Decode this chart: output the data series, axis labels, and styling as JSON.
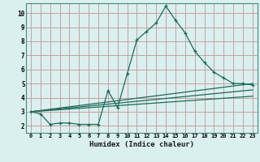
{
  "xlabel": "Humidex (Indice chaleur)",
  "bg_color": "#d9f0ee",
  "grid_color": "#c8a0a0",
  "line_color": "#1a6b5a",
  "xlim": [
    -0.5,
    23.5
  ],
  "ylim": [
    1.5,
    10.7
  ],
  "xticks": [
    0,
    1,
    2,
    3,
    4,
    5,
    6,
    7,
    8,
    9,
    10,
    11,
    12,
    13,
    14,
    15,
    16,
    17,
    18,
    19,
    20,
    21,
    22,
    23
  ],
  "yticks": [
    2,
    3,
    4,
    5,
    6,
    7,
    8,
    9,
    10
  ],
  "line1_x": [
    0,
    1,
    2,
    3,
    4,
    5,
    6,
    7,
    8,
    9,
    10,
    11,
    12,
    13,
    14,
    15,
    16,
    17,
    18,
    19,
    20,
    21,
    22,
    23
  ],
  "line1_y": [
    3.0,
    2.85,
    2.1,
    2.2,
    2.2,
    2.1,
    2.1,
    2.1,
    4.5,
    3.3,
    5.7,
    8.1,
    8.7,
    9.3,
    10.5,
    9.5,
    8.6,
    7.3,
    6.5,
    5.8,
    5.4,
    5.0,
    5.0,
    4.9
  ],
  "line2_x": [
    0,
    23
  ],
  "line2_y": [
    3.0,
    5.0
  ],
  "line3_x": [
    0,
    23
  ],
  "line3_y": [
    3.0,
    4.55
  ],
  "line4_x": [
    0,
    23
  ],
  "line4_y": [
    3.0,
    4.1
  ]
}
